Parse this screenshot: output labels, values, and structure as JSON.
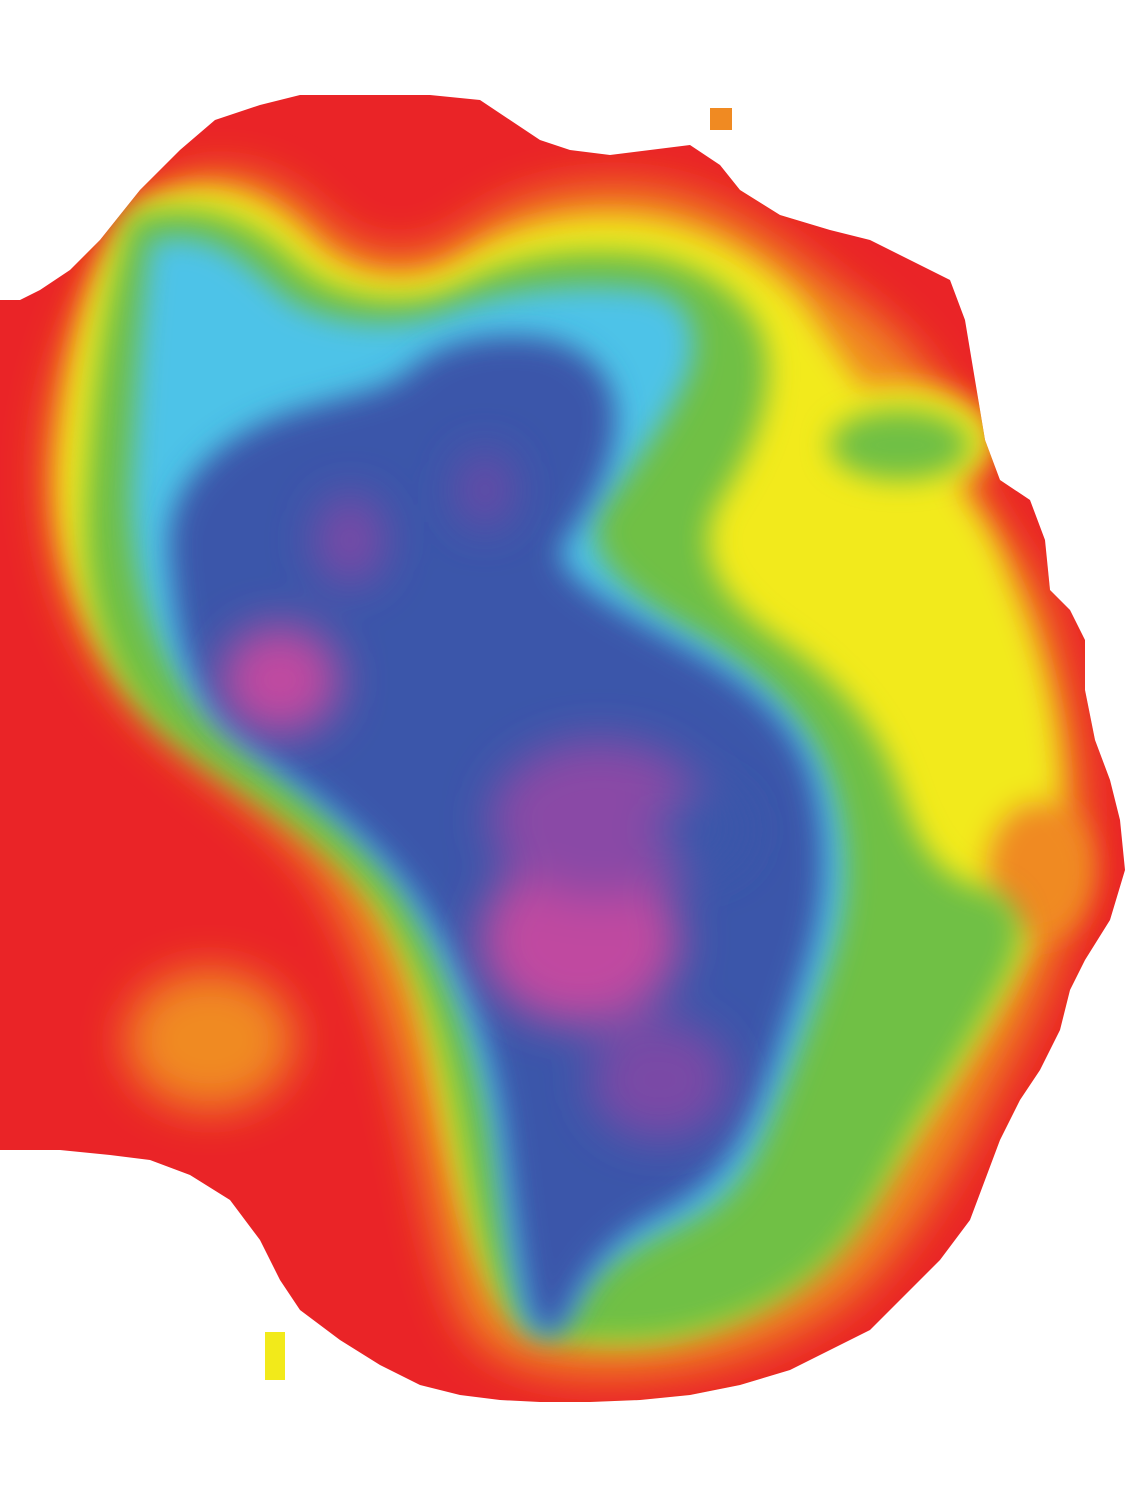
{
  "chart_data": {
    "type": "heatmap",
    "title": "",
    "xlabel": "",
    "ylabel": "",
    "colorscale": [
      "#c04aa0",
      "#3a56aa",
      "#4ec3e8",
      "#6fc044",
      "#f2ea1a",
      "#f08a22",
      "#ea2427"
    ],
    "background": "#ffffff",
    "regions": [
      {
        "name": "outer",
        "color": "#ea2427"
      },
      {
        "name": "orange",
        "color": "#f08a22"
      },
      {
        "name": "yellow",
        "color": "#f2ea1a"
      },
      {
        "name": "green",
        "color": "#6fc044"
      },
      {
        "name": "cyan",
        "color": "#4ec3e8"
      },
      {
        "name": "blue",
        "color": "#3a56aa"
      },
      {
        "name": "magenta",
        "color": "#c04aa0"
      }
    ]
  }
}
